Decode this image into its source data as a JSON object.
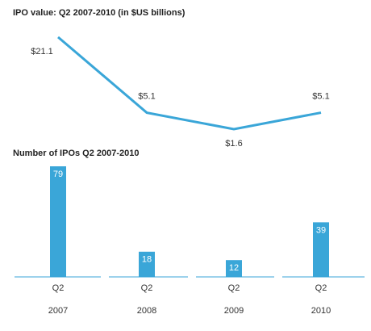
{
  "chart_data": [
    {
      "type": "line",
      "title": "IPO value: Q2 2007-2010 (in $US billions)",
      "color": "#3aa6d8",
      "values": [
        21.1,
        5.1,
        1.6,
        5.1
      ],
      "value_labels": [
        "$21.1",
        "$5.1",
        "$1.6",
        "$5.1"
      ]
    },
    {
      "type": "bar",
      "title": "Number of IPOs Q2 2007-2010",
      "color": "#3aa6d8",
      "quarters": [
        "Q2",
        "Q2",
        "Q2",
        "Q2"
      ],
      "categories": [
        "2007",
        "2008",
        "2009",
        "2010"
      ],
      "values": [
        79,
        18,
        12,
        39
      ]
    }
  ]
}
